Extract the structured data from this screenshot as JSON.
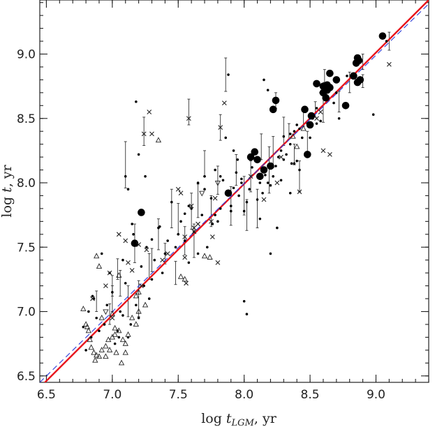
{
  "chart_data": {
    "type": "scatter",
    "title": "",
    "xlabel": {
      "prefix": "log ",
      "var": "t",
      "sub": "LGM",
      "suffix": ", yr"
    },
    "ylabel": {
      "prefix": "log ",
      "var": "t",
      "suffix": ", yr"
    },
    "xlim": [
      6.45,
      9.4
    ],
    "ylim": [
      6.45,
      9.42
    ],
    "xticks": [
      {
        "value": 6.5,
        "label": "6.5"
      },
      {
        "value": 7.0,
        "label": "7.0"
      },
      {
        "value": 7.5,
        "label": "7.5"
      },
      {
        "value": 8.0,
        "label": "8.0"
      },
      {
        "value": 8.5,
        "label": "8.5"
      },
      {
        "value": 9.0,
        "label": "9.0"
      }
    ],
    "yticks": [
      {
        "value": 6.5,
        "label": "6.5"
      },
      {
        "value": 7.0,
        "label": "7.0"
      },
      {
        "value": 7.5,
        "label": "7.5"
      },
      {
        "value": 8.0,
        "label": "8.0"
      },
      {
        "value": 8.5,
        "label": "8.5"
      },
      {
        "value": 9.0,
        "label": "9.0"
      }
    ],
    "minor_tick_step": 0.1,
    "grid": false,
    "legend": "none",
    "lines": [
      {
        "style": "solid",
        "color": "#e8141b",
        "x": [
          6.45,
          9.4
        ],
        "y": [
          6.41,
          9.42
        ]
      },
      {
        "style": "dashed",
        "color": "#2b3bd8",
        "x": [
          6.45,
          9.4
        ],
        "y": [
          6.45,
          9.39
        ]
      }
    ],
    "series": [
      {
        "marker": "big-dot",
        "points": [
          [
            9.05,
            9.14
          ],
          [
            8.85,
            8.93
          ],
          [
            8.86,
            8.97
          ],
          [
            8.87,
            8.95
          ],
          [
            8.83,
            8.83
          ],
          [
            8.86,
            8.78
          ],
          [
            8.88,
            8.8
          ],
          [
            8.65,
            8.85
          ],
          [
            8.7,
            8.8
          ],
          [
            8.55,
            8.77
          ],
          [
            8.6,
            8.75
          ],
          [
            8.62,
            8.75
          ],
          [
            8.63,
            8.76
          ],
          [
            8.65,
            8.74
          ],
          [
            8.6,
            8.7
          ],
          [
            8.62,
            8.66
          ],
          [
            8.63,
            8.72
          ],
          [
            8.77,
            8.6
          ],
          [
            8.51,
            8.52
          ],
          [
            8.5,
            8.45
          ],
          [
            8.46,
            8.57
          ],
          [
            8.48,
            8.22
          ],
          [
            8.22,
            8.57
          ],
          [
            8.24,
            8.64
          ],
          [
            8.05,
            8.2
          ],
          [
            8.08,
            8.24
          ],
          [
            8.1,
            8.18
          ],
          [
            8.15,
            8.1
          ],
          [
            8.2,
            8.13
          ],
          [
            8.12,
            8.05
          ],
          [
            7.88,
            7.92
          ],
          [
            7.17,
            7.53
          ],
          [
            7.22,
            7.77
          ]
        ]
      },
      {
        "marker": "dot",
        "points": [
          [
            8.98,
            8.53
          ],
          [
            8.86,
            8.78
          ],
          [
            8.78,
            8.83
          ],
          [
            8.58,
            8.7
          ],
          [
            8.55,
            8.58
          ],
          [
            8.48,
            8.46
          ],
          [
            8.45,
            8.57
          ],
          [
            8.42,
            8.42
          ],
          [
            8.4,
            8.45
          ],
          [
            8.38,
            8.4
          ],
          [
            8.35,
            8.38
          ],
          [
            8.35,
            8.3
          ],
          [
            8.38,
            8.15
          ],
          [
            8.32,
            8.22
          ],
          [
            8.3,
            8.18
          ],
          [
            8.28,
            8.25
          ],
          [
            8.26,
            8.2
          ],
          [
            8.24,
            8.13
          ],
          [
            8.22,
            8.05
          ],
          [
            8.2,
            7.98
          ],
          [
            8.18,
            8.0
          ],
          [
            8.16,
            8.06
          ],
          [
            8.14,
            7.92
          ],
          [
            8.12,
            8.0
          ],
          [
            8.1,
            7.87
          ],
          [
            8.06,
            8.12
          ],
          [
            8.04,
            7.95
          ],
          [
            8.02,
            7.85
          ],
          [
            8.0,
            7.78
          ],
          [
            7.98,
            8.03
          ],
          [
            7.96,
            7.9
          ],
          [
            7.94,
            8.08
          ],
          [
            7.92,
            7.96
          ],
          [
            7.9,
            7.82
          ],
          [
            7.88,
            8.84
          ],
          [
            7.86,
            8.35
          ],
          [
            7.84,
            8.02
          ],
          [
            7.82,
            7.8
          ],
          [
            7.8,
            7.7
          ],
          [
            7.78,
            7.75
          ],
          [
            7.75,
            7.88
          ],
          [
            7.72,
            7.5
          ],
          [
            7.7,
            7.95
          ],
          [
            7.68,
            7.75
          ],
          [
            7.65,
            7.45
          ],
          [
            7.62,
            7.62
          ],
          [
            7.6,
            7.8
          ],
          [
            7.58,
            7.38
          ],
          [
            7.55,
            7.55
          ],
          [
            7.52,
            7.7
          ],
          [
            7.5,
            7.6
          ],
          [
            7.48,
            7.5
          ],
          [
            7.45,
            7.85
          ],
          [
            7.42,
            7.55
          ],
          [
            7.4,
            7.45
          ],
          [
            7.38,
            7.3
          ],
          [
            7.35,
            7.65
          ],
          [
            7.32,
            7.4
          ],
          [
            7.3,
            7.25
          ],
          [
            7.28,
            7.1
          ],
          [
            7.26,
            7.5
          ],
          [
            7.24,
            7.2
          ],
          [
            7.22,
            7.35
          ],
          [
            7.2,
            6.95
          ],
          [
            7.18,
            7.05
          ],
          [
            7.16,
            7.6
          ],
          [
            7.14,
            6.9
          ],
          [
            7.12,
            6.8
          ],
          [
            7.1,
            7.22
          ],
          [
            7.08,
            7.4
          ],
          [
            7.06,
            7.0
          ],
          [
            7.04,
            6.85
          ],
          [
            7.02,
            6.75
          ],
          [
            7.0,
            7.15
          ],
          [
            6.98,
            7.3
          ],
          [
            6.96,
            7.05
          ],
          [
            6.94,
            6.9
          ],
          [
            6.92,
            7.45
          ],
          [
            6.9,
            6.85
          ],
          [
            6.88,
            6.95
          ],
          [
            6.86,
            7.1
          ],
          [
            6.84,
            6.8
          ],
          [
            6.82,
            7.0
          ],
          [
            6.8,
            6.7
          ],
          [
            6.78,
            6.88
          ],
          [
            7.15,
            7.68
          ],
          [
            7.2,
            8.22
          ],
          [
            7.25,
            8.05
          ],
          [
            7.1,
            8.05
          ],
          [
            7.12,
            7.95
          ],
          [
            8.15,
            8.8
          ],
          [
            8.18,
            8.72
          ],
          [
            8.28,
            8.02
          ],
          [
            8.3,
            8.36
          ],
          [
            8.35,
            7.92
          ],
          [
            8.4,
            8.17
          ],
          [
            8.5,
            8.35
          ],
          [
            8.52,
            8.5
          ],
          [
            8.55,
            8.46
          ],
          [
            8.58,
            8.48
          ],
          [
            8.0,
            7.08
          ],
          [
            8.02,
            6.98
          ],
          [
            8.2,
            7.45
          ],
          [
            8.25,
            7.65
          ],
          [
            8.12,
            7.72
          ],
          [
            7.9,
            7.78
          ],
          [
            7.76,
            7.68
          ],
          [
            7.58,
            7.82
          ],
          [
            7.55,
            7.76
          ],
          [
            7.65,
            8.0
          ],
          [
            7.7,
            8.05
          ],
          [
            7.78,
            8.1
          ],
          [
            7.82,
            8.05
          ],
          [
            7.92,
            8.25
          ],
          [
            7.95,
            8.18
          ],
          [
            7.98,
            8.0
          ],
          [
            7.36,
            7.66
          ],
          [
            7.3,
            7.56
          ],
          [
            7.18,
            8.63
          ],
          [
            9.08,
            9.1
          ],
          [
            8.7,
            8.7
          ],
          [
            8.72,
            8.5
          ],
          [
            8.68,
            8.62
          ],
          [
            8.44,
            8.35
          ],
          [
            8.42,
            8.1
          ],
          [
            8.36,
            8.15
          ],
          [
            6.85,
            7.12
          ],
          [
            7.05,
            6.8
          ],
          [
            7.08,
            6.97
          ]
        ]
      },
      {
        "marker": "open-triangle",
        "points": [
          [
            6.78,
            7.02
          ],
          [
            6.8,
            6.9
          ],
          [
            6.82,
            6.85
          ],
          [
            6.84,
            6.72
          ],
          [
            6.86,
            6.68
          ],
          [
            6.88,
            6.66
          ],
          [
            6.9,
            6.65
          ],
          [
            6.92,
            6.7
          ],
          [
            6.95,
            6.73
          ],
          [
            6.97,
            6.78
          ],
          [
            7.0,
            6.8
          ],
          [
            7.02,
            6.82
          ],
          [
            7.05,
            6.85
          ],
          [
            7.08,
            6.78
          ],
          [
            7.1,
            6.75
          ],
          [
            7.12,
            6.82
          ],
          [
            7.15,
            6.95
          ],
          [
            7.18,
            6.9
          ],
          [
            7.2,
            7.0
          ],
          [
            7.05,
            7.28
          ],
          [
            7.0,
            6.98
          ],
          [
            6.95,
            6.65
          ],
          [
            6.98,
            6.7
          ],
          [
            7.03,
            6.68
          ],
          [
            7.07,
            6.6
          ],
          [
            6.83,
            6.78
          ],
          [
            6.87,
            6.62
          ],
          [
            6.92,
            6.95
          ],
          [
            6.88,
            7.43
          ],
          [
            6.9,
            7.35
          ],
          [
            7.25,
            7.05
          ],
          [
            7.2,
            7.15
          ],
          [
            7.55,
            7.25
          ],
          [
            7.52,
            7.27
          ],
          [
            7.7,
            7.43
          ],
          [
            7.74,
            7.42
          ],
          [
            7.35,
            8.33
          ],
          [
            8.4,
            8.28
          ],
          [
            8.45,
            8.42
          ],
          [
            8.37,
            8.36
          ],
          [
            7.02,
            6.87
          ],
          [
            7.1,
            6.68
          ],
          [
            6.81,
            6.88
          ],
          [
            7.18,
            7.12
          ]
        ]
      },
      {
        "marker": "cross",
        "points": [
          [
            9.1,
            8.92
          ],
          [
            8.6,
            8.25
          ],
          [
            8.65,
            8.22
          ],
          [
            8.42,
            7.93
          ],
          [
            8.15,
            7.87
          ],
          [
            7.82,
            8.43
          ],
          [
            7.85,
            8.62
          ],
          [
            7.78,
            7.88
          ],
          [
            7.76,
            7.58
          ],
          [
            7.58,
            8.5
          ],
          [
            7.6,
            7.82
          ],
          [
            7.62,
            7.65
          ],
          [
            7.5,
            7.95
          ],
          [
            7.52,
            7.92
          ],
          [
            7.55,
            7.42
          ],
          [
            7.3,
            8.38
          ],
          [
            7.28,
            8.55
          ],
          [
            7.24,
            8.38
          ],
          [
            7.1,
            7.55
          ],
          [
            7.12,
            7.38
          ],
          [
            7.05,
            7.6
          ],
          [
            6.98,
            7.3
          ],
          [
            6.95,
            7.2
          ],
          [
            7.22,
            7.2
          ],
          [
            7.15,
            7.32
          ],
          [
            7.2,
            7.52
          ],
          [
            7.26,
            7.48
          ],
          [
            6.85,
            7.1
          ],
          [
            7.0,
            6.95
          ],
          [
            7.56,
            7.22
          ],
          [
            7.55,
            7.58
          ],
          [
            7.62,
            7.62
          ],
          [
            7.8,
            7.38
          ],
          [
            7.75,
            7.7
          ],
          [
            7.65,
            7.68
          ],
          [
            7.42,
            7.45
          ],
          [
            7.38,
            7.4
          ],
          [
            8.55,
            8.5
          ],
          [
            8.58,
            8.55
          ],
          [
            8.28,
            8.2
          ],
          [
            8.25,
            8.0
          ],
          [
            8.05,
            8.05
          ]
        ]
      },
      {
        "marker": "open-inverted-triangle",
        "points": [
          [
            7.68,
            7.92
          ],
          [
            7.8,
            8.0
          ],
          [
            6.95,
            7.0
          ]
        ]
      }
    ],
    "error_bars": [
      [
        9.1,
        9.1,
        0.07
      ],
      [
        8.72,
        8.63,
        0.08
      ],
      [
        8.61,
        8.83,
        0.05
      ],
      [
        8.54,
        8.57,
        0.06
      ],
      [
        8.45,
        8.5,
        0.06
      ],
      [
        8.38,
        8.22,
        0.08
      ],
      [
        8.34,
        8.4,
        0.06
      ],
      [
        8.24,
        8.64,
        0.06
      ],
      [
        8.22,
        8.24,
        0.12
      ],
      [
        8.19,
        8.1,
        0.18
      ],
      [
        8.13,
        8.28,
        0.1
      ],
      [
        8.05,
        8.05,
        0.12
      ],
      [
        8.0,
        7.9,
        0.15
      ],
      [
        7.94,
        8.1,
        0.12
      ],
      [
        7.9,
        7.82,
        0.15
      ],
      [
        7.86,
        8.84,
        0.13
      ],
      [
        7.82,
        8.43,
        0.1
      ],
      [
        7.8,
        8.02,
        0.11
      ],
      [
        7.75,
        7.78,
        0.12
      ],
      [
        7.7,
        8.15,
        0.1
      ],
      [
        7.65,
        7.86,
        0.13
      ],
      [
        7.6,
        7.78,
        0.14
      ],
      [
        7.55,
        7.55,
        0.11
      ],
      [
        7.5,
        7.72,
        0.12
      ],
      [
        7.45,
        7.8,
        0.15
      ],
      [
        7.4,
        7.45,
        0.08
      ],
      [
        7.35,
        7.6,
        0.12
      ],
      [
        7.24,
        8.4,
        0.11
      ],
      [
        7.1,
        8.14,
        0.18
      ],
      [
        7.17,
        7.53,
        0.15
      ],
      [
        7.06,
        7.22,
        0.1
      ],
      [
        7.0,
        7.1,
        0.1
      ],
      [
        6.98,
        6.98,
        0.08
      ],
      [
        6.88,
        7.08,
        0.08
      ],
      [
        7.12,
        7.08,
        0.12
      ],
      [
        7.2,
        7.1,
        0.14
      ],
      [
        7.28,
        7.35,
        0.1
      ],
      [
        7.58,
        8.55,
        0.1
      ],
      [
        7.62,
        7.55,
        0.13
      ],
      [
        8.1,
        7.8,
        0.15
      ],
      [
        8.02,
        7.75,
        0.12
      ],
      [
        8.3,
        8.4,
        0.11
      ],
      [
        8.42,
        8.05,
        0.12
      ],
      [
        8.48,
        8.3,
        0.1
      ],
      [
        8.6,
        8.58,
        0.11
      ],
      [
        8.8,
        8.78,
        0.08
      ],
      [
        8.9,
        8.94,
        0.06
      ],
      [
        8.9,
        8.79,
        0.05
      ],
      [
        7.3,
        7.4,
        0.09
      ],
      [
        7.48,
        7.3,
        0.09
      ],
      [
        7.04,
        7.33,
        0.08
      ],
      [
        7.0,
        7.2,
        0.08
      ]
    ]
  }
}
